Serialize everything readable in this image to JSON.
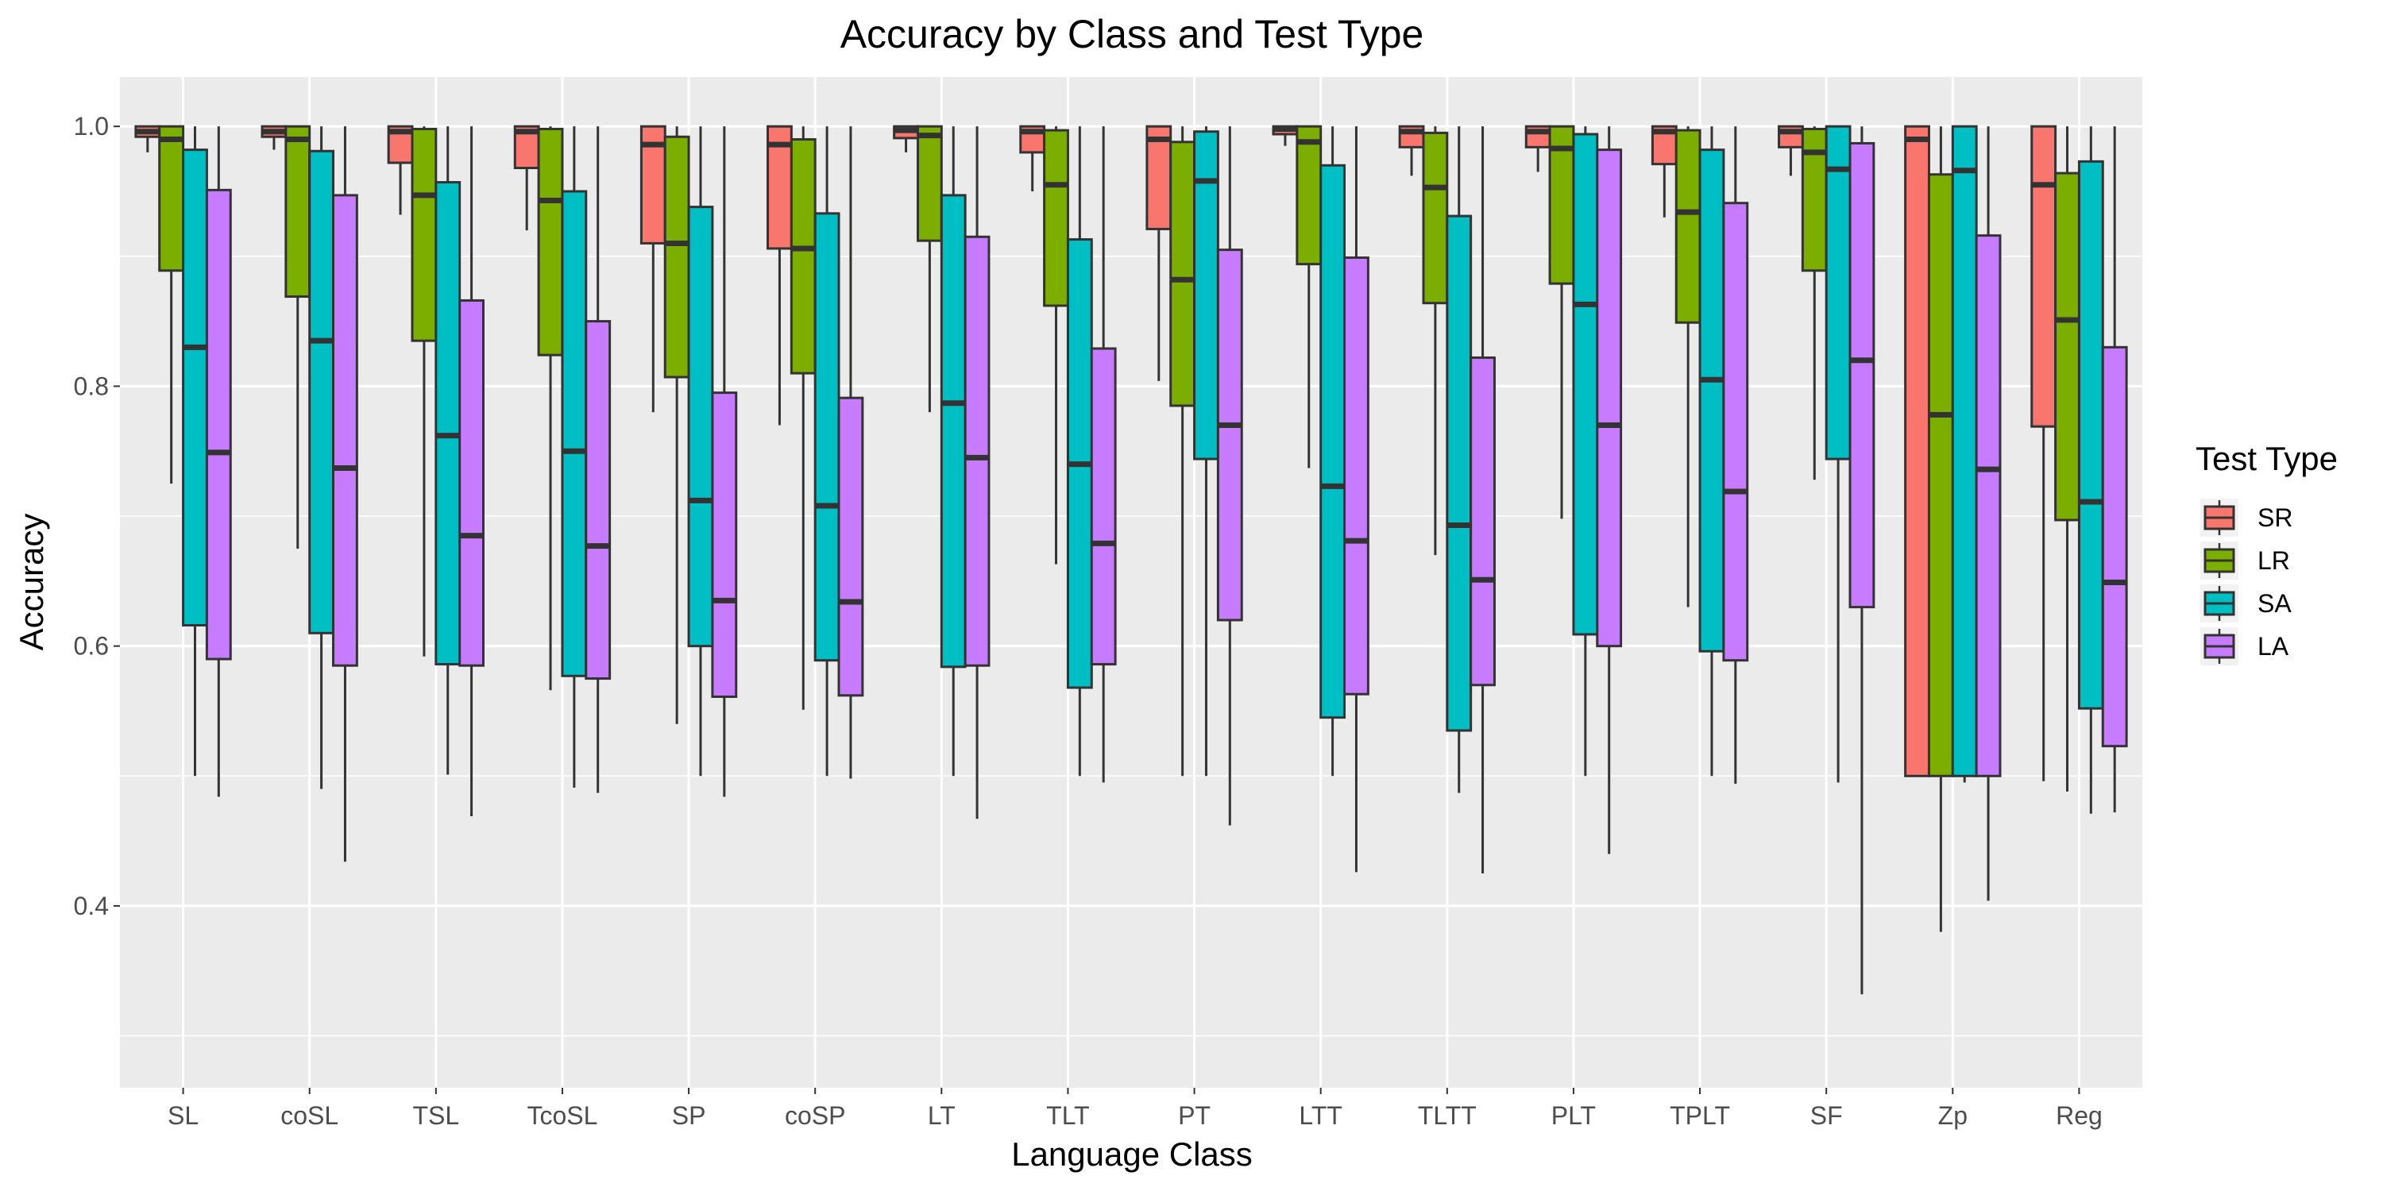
{
  "chart_data": {
    "type": "boxplot",
    "title": "Accuracy by Class and Test Type",
    "xlabel": "Language Class",
    "ylabel": "Accuracy",
    "ylim": [
      0.26,
      1.038
    ],
    "yticks": [
      0.4,
      0.6,
      0.8,
      1.0
    ],
    "ytick_labels": [
      "0.4",
      "0.6",
      "0.8",
      "1.0"
    ],
    "grid": true,
    "legend_title": "Test Type",
    "legend_position": "right",
    "categories": [
      "SL",
      "coSL",
      "TSL",
      "TcoSL",
      "SP",
      "coSP",
      "LT",
      "TLT",
      "PT",
      "LTT",
      "TLTT",
      "PLT",
      "TPLT",
      "SF",
      "Zp",
      "Reg"
    ],
    "series": [
      {
        "name": "SR",
        "color": "#F8766D",
        "boxes": [
          {
            "min": 0.98,
            "q1": 0.992,
            "median": 0.996,
            "q3": 1.0,
            "max": 1.0
          },
          {
            "min": 0.982,
            "q1": 0.992,
            "median": 0.996,
            "q3": 1.0,
            "max": 1.0
          },
          {
            "min": 0.932,
            "q1": 0.972,
            "median": 0.996,
            "q3": 1.0,
            "max": 1.0
          },
          {
            "min": 0.92,
            "q1": 0.968,
            "median": 0.996,
            "q3": 1.0,
            "max": 1.0
          },
          {
            "min": 0.78,
            "q1": 0.91,
            "median": 0.986,
            "q3": 1.0,
            "max": 1.0
          },
          {
            "min": 0.77,
            "q1": 0.906,
            "median": 0.986,
            "q3": 1.0,
            "max": 1.0
          },
          {
            "min": 0.98,
            "q1": 0.991,
            "median": 0.997,
            "q3": 1.0,
            "max": 1.0
          },
          {
            "min": 0.95,
            "q1": 0.98,
            "median": 0.996,
            "q3": 1.0,
            "max": 1.0
          },
          {
            "min": 0.804,
            "q1": 0.921,
            "median": 0.99,
            "q3": 1.0,
            "max": 1.0
          },
          {
            "min": 0.985,
            "q1": 0.994,
            "median": 0.998,
            "q3": 1.0,
            "max": 1.0
          },
          {
            "min": 0.962,
            "q1": 0.984,
            "median": 0.996,
            "q3": 1.0,
            "max": 1.0
          },
          {
            "min": 0.965,
            "q1": 0.984,
            "median": 0.996,
            "q3": 1.0,
            "max": 1.0
          },
          {
            "min": 0.93,
            "q1": 0.971,
            "median": 0.996,
            "q3": 1.0,
            "max": 1.0
          },
          {
            "min": 0.962,
            "q1": 0.984,
            "median": 0.996,
            "q3": 1.0,
            "max": 1.0
          },
          {
            "min": 0.5,
            "q1": 0.5,
            "median": 0.99,
            "q3": 1.0,
            "max": 1.0
          },
          {
            "min": 0.496,
            "q1": 0.769,
            "median": 0.955,
            "q3": 1.0,
            "max": 1.0
          }
        ]
      },
      {
        "name": "LR",
        "color": "#7CAE00",
        "boxes": [
          {
            "min": 0.725,
            "q1": 0.889,
            "median": 0.99,
            "q3": 1.0,
            "max": 1.0
          },
          {
            "min": 0.675,
            "q1": 0.869,
            "median": 0.99,
            "q3": 1.0,
            "max": 1.0
          },
          {
            "min": 0.592,
            "q1": 0.835,
            "median": 0.947,
            "q3": 0.998,
            "max": 1.0
          },
          {
            "min": 0.566,
            "q1": 0.824,
            "median": 0.943,
            "q3": 0.998,
            "max": 1.0
          },
          {
            "min": 0.54,
            "q1": 0.807,
            "median": 0.91,
            "q3": 0.992,
            "max": 1.0
          },
          {
            "min": 0.551,
            "q1": 0.81,
            "median": 0.906,
            "q3": 0.99,
            "max": 1.0
          },
          {
            "min": 0.78,
            "q1": 0.912,
            "median": 0.993,
            "q3": 1.0,
            "max": 1.0
          },
          {
            "min": 0.663,
            "q1": 0.862,
            "median": 0.955,
            "q3": 0.997,
            "max": 1.0
          },
          {
            "min": 0.5,
            "q1": 0.785,
            "median": 0.882,
            "q3": 0.988,
            "max": 1.0
          },
          {
            "min": 0.737,
            "q1": 0.894,
            "median": 0.988,
            "q3": 1.0,
            "max": 1.0
          },
          {
            "min": 0.67,
            "q1": 0.864,
            "median": 0.953,
            "q3": 0.995,
            "max": 1.0
          },
          {
            "min": 0.698,
            "q1": 0.879,
            "median": 0.983,
            "q3": 1.0,
            "max": 1.0
          },
          {
            "min": 0.63,
            "q1": 0.849,
            "median": 0.934,
            "q3": 0.997,
            "max": 1.0
          },
          {
            "min": 0.728,
            "q1": 0.889,
            "median": 0.98,
            "q3": 0.998,
            "max": 1.0
          },
          {
            "min": 0.38,
            "q1": 0.5,
            "median": 0.778,
            "q3": 0.963,
            "max": 1.0
          },
          {
            "min": 0.488,
            "q1": 0.697,
            "median": 0.851,
            "q3": 0.964,
            "max": 1.0
          }
        ]
      },
      {
        "name": "SA",
        "color": "#00BFC4",
        "boxes": [
          {
            "min": 0.5,
            "q1": 0.616,
            "median": 0.83,
            "q3": 0.982,
            "max": 1.0
          },
          {
            "min": 0.49,
            "q1": 0.61,
            "median": 0.835,
            "q3": 0.981,
            "max": 1.0
          },
          {
            "min": 0.501,
            "q1": 0.586,
            "median": 0.762,
            "q3": 0.957,
            "max": 1.0
          },
          {
            "min": 0.491,
            "q1": 0.577,
            "median": 0.75,
            "q3": 0.95,
            "max": 1.0
          },
          {
            "min": 0.5,
            "q1": 0.6,
            "median": 0.712,
            "q3": 0.938,
            "max": 1.0
          },
          {
            "min": 0.5,
            "q1": 0.589,
            "median": 0.708,
            "q3": 0.933,
            "max": 1.0
          },
          {
            "min": 0.5,
            "q1": 0.584,
            "median": 0.787,
            "q3": 0.947,
            "max": 1.0
          },
          {
            "min": 0.5,
            "q1": 0.568,
            "median": 0.74,
            "q3": 0.913,
            "max": 1.0
          },
          {
            "min": 0.5,
            "q1": 0.744,
            "median": 0.958,
            "q3": 0.996,
            "max": 1.0
          },
          {
            "min": 0.5,
            "q1": 0.545,
            "median": 0.723,
            "q3": 0.97,
            "max": 1.0
          },
          {
            "min": 0.487,
            "q1": 0.535,
            "median": 0.693,
            "q3": 0.931,
            "max": 1.0
          },
          {
            "min": 0.5,
            "q1": 0.609,
            "median": 0.863,
            "q3": 0.994,
            "max": 1.0
          },
          {
            "min": 0.5,
            "q1": 0.596,
            "median": 0.805,
            "q3": 0.982,
            "max": 1.0
          },
          {
            "min": 0.495,
            "q1": 0.744,
            "median": 0.967,
            "q3": 1.0,
            "max": 1.0
          },
          {
            "min": 0.495,
            "q1": 0.5,
            "median": 0.966,
            "q3": 1.0,
            "max": 1.0
          },
          {
            "min": 0.471,
            "q1": 0.552,
            "median": 0.711,
            "q3": 0.973,
            "max": 1.0
          }
        ]
      },
      {
        "name": "LA",
        "color": "#C77CFF",
        "boxes": [
          {
            "min": 0.484,
            "q1": 0.59,
            "median": 0.749,
            "q3": 0.951,
            "max": 1.0
          },
          {
            "min": 0.434,
            "q1": 0.585,
            "median": 0.737,
            "q3": 0.947,
            "max": 1.0
          },
          {
            "min": 0.469,
            "q1": 0.585,
            "median": 0.685,
            "q3": 0.866,
            "max": 1.0
          },
          {
            "min": 0.487,
            "q1": 0.575,
            "median": 0.677,
            "q3": 0.85,
            "max": 1.0
          },
          {
            "min": 0.484,
            "q1": 0.561,
            "median": 0.635,
            "q3": 0.795,
            "max": 1.0
          },
          {
            "min": 0.498,
            "q1": 0.562,
            "median": 0.634,
            "q3": 0.791,
            "max": 1.0
          },
          {
            "min": 0.467,
            "q1": 0.585,
            "median": 0.745,
            "q3": 0.915,
            "max": 1.0
          },
          {
            "min": 0.495,
            "q1": 0.586,
            "median": 0.679,
            "q3": 0.829,
            "max": 1.0
          },
          {
            "min": 0.462,
            "q1": 0.62,
            "median": 0.77,
            "q3": 0.905,
            "max": 1.0
          },
          {
            "min": 0.426,
            "q1": 0.563,
            "median": 0.681,
            "q3": 0.899,
            "max": 1.0
          },
          {
            "min": 0.425,
            "q1": 0.57,
            "median": 0.651,
            "q3": 0.822,
            "max": 1.0
          },
          {
            "min": 0.44,
            "q1": 0.6,
            "median": 0.77,
            "q3": 0.982,
            "max": 1.0
          },
          {
            "min": 0.494,
            "q1": 0.589,
            "median": 0.719,
            "q3": 0.941,
            "max": 1.0
          },
          {
            "min": 0.332,
            "q1": 0.63,
            "median": 0.82,
            "q3": 0.987,
            "max": 1.0
          },
          {
            "min": 0.404,
            "q1": 0.5,
            "median": 0.736,
            "q3": 0.916,
            "max": 1.0
          },
          {
            "min": 0.472,
            "q1": 0.523,
            "median": 0.649,
            "q3": 0.83,
            "max": 1.0
          }
        ]
      }
    ]
  }
}
